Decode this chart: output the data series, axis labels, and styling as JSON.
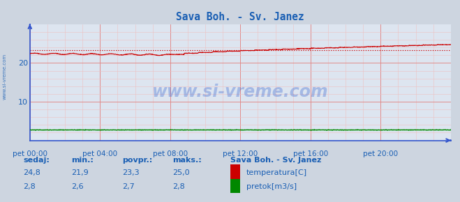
{
  "title": "Sava Boh. - Sv. Janez",
  "title_color": "#1a5fb4",
  "bg_color": "#cdd5e0",
  "plot_bg_color": "#dde5f0",
  "grid_color_major": "#e08080",
  "grid_color_minor": "#eec0c0",
  "temp_color": "#cc0000",
  "flow_color": "#008800",
  "avg_line_color": "#cc0000",
  "axis_color": "#3355cc",
  "tick_color": "#1a5fb4",
  "ylim": [
    0,
    30
  ],
  "yticks": [
    10,
    20
  ],
  "xtick_labels": [
    "pet 00:00",
    "pet 04:00",
    "pet 08:00",
    "pet 12:00",
    "pet 16:00",
    "pet 20:00"
  ],
  "xtick_positions": [
    0,
    288,
    576,
    864,
    1152,
    1440
  ],
  "total_points": 1728,
  "temp_min": 21.9,
  "temp_max": 25.0,
  "temp_avg": 23.3,
  "temp_current": 24.8,
  "flow_min": 2.6,
  "flow_max": 2.8,
  "flow_avg": 2.7,
  "flow_current": 2.8,
  "watermark": "www.si-vreme.com",
  "watermark_color": "#2255cc",
  "watermark_alpha": 0.3,
  "legend_title": "Sava Boh. - Sv. Janez",
  "legend_title_color": "#1a5fb4",
  "label_sedaj": "sedaj:",
  "label_min": "min.:",
  "label_povpr": "povpr.:",
  "label_maks": "maks.:",
  "label_temp": "temperatura[C]",
  "label_flow": "pretok[m3/s]",
  "left_label": "www.si-vreme.com",
  "left_label_color": "#1a5fb4"
}
